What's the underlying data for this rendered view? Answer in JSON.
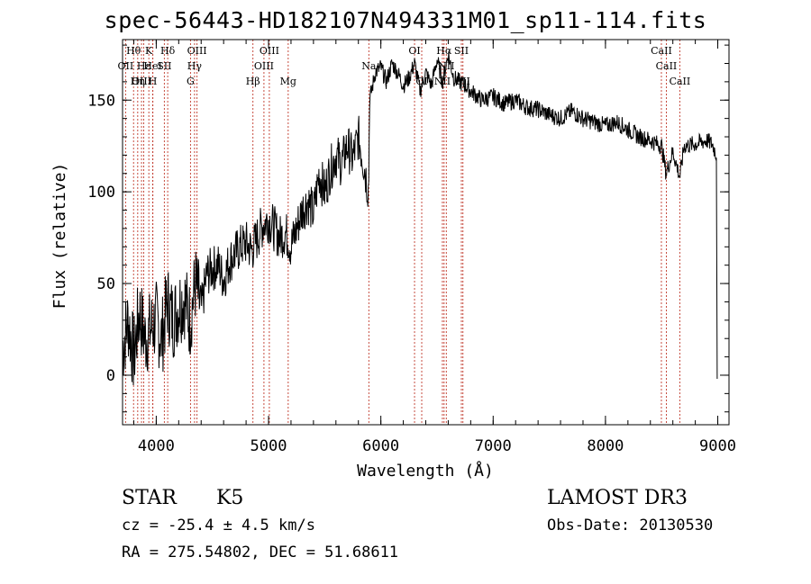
{
  "title": "spec-56443-HD182107N494331M01_sp11-114.fits",
  "info": {
    "class": "STAR",
    "subclass": "K5",
    "survey": "LAMOST DR3",
    "cz": "cz = -25.4 ± 4.5 km/s",
    "obs_date": "Obs-Date: 20130530",
    "coords": "RA = 275.54802, DEC =  51.68611"
  },
  "chart_data": {
    "type": "line",
    "title": "spec-56443-HD182107N494331M01_sp11-114.fits",
    "xlabel": "Wavelength (Å)",
    "ylabel": "Flux (relative)",
    "xlim": [
      3700,
      9100
    ],
    "ylim": [
      -27,
      183
    ],
    "xticks": [
      4000,
      5000,
      6000,
      7000,
      8000,
      9000
    ],
    "yticks": [
      0,
      50,
      100,
      150
    ],
    "series": [
      {
        "name": "flux",
        "x": [
          3700,
          3750,
          3800,
          3850,
          3900,
          3950,
          4000,
          4050,
          4100,
          4150,
          4200,
          4250,
          4300,
          4350,
          4400,
          4450,
          4500,
          4550,
          4600,
          4650,
          4700,
          4750,
          4800,
          4850,
          4900,
          4950,
          5000,
          5050,
          5100,
          5150,
          5200,
          5250,
          5300,
          5350,
          5400,
          5450,
          5500,
          5550,
          5600,
          5650,
          5700,
          5750,
          5800,
          5850,
          5890,
          5900,
          5950,
          6000,
          6050,
          6100,
          6150,
          6200,
          6250,
          6300,
          6350,
          6400,
          6450,
          6500,
          6550,
          6600,
          6650,
          6700,
          6750,
          6800,
          6900,
          7000,
          7100,
          7200,
          7300,
          7400,
          7500,
          7600,
          7700,
          7800,
          7900,
          8000,
          8100,
          8200,
          8300,
          8400,
          8500,
          8540,
          8600,
          8662,
          8700,
          8800,
          8900,
          8950,
          8990
        ],
        "y": [
          15,
          30,
          10,
          35,
          20,
          25,
          30,
          20,
          40,
          30,
          38,
          42,
          30,
          50,
          35,
          55,
          58,
          60,
          52,
          62,
          66,
          70,
          72,
          68,
          75,
          82,
          85,
          80,
          75,
          78,
          70,
          80,
          90,
          95,
          88,
          110,
          100,
          112,
          120,
          115,
          125,
          118,
          130,
          115,
          100,
          150,
          165,
          168,
          160,
          170,
          165,
          158,
          162,
          170,
          155,
          165,
          158,
          172,
          160,
          175,
          162,
          160,
          158,
          155,
          150,
          152,
          148,
          150,
          146,
          145,
          142,
          140,
          144,
          140,
          138,
          136,
          138,
          134,
          130,
          128,
          125,
          110,
          122,
          108,
          125,
          126,
          128,
          126,
          120
        ]
      }
    ],
    "lines": [
      {
        "label": "Hθ",
        "x": 3798,
        "row": 0
      },
      {
        "label": "OII",
        "x": 3727,
        "row": 1
      },
      {
        "label": "OIII",
        "x": 3869,
        "row": 2
      },
      {
        "label": "Hη",
        "x": 3835,
        "row": 2
      },
      {
        "label": "Hε",
        "x": 3889,
        "row": 1
      },
      {
        "label": "K",
        "x": 3934,
        "row": 0
      },
      {
        "label": "H",
        "x": 3969,
        "row": 2
      },
      {
        "label": "HeI",
        "x": 3970,
        "row": 1
      },
      {
        "label": "SII",
        "x": 4072,
        "row": 1
      },
      {
        "label": "Hδ",
        "x": 4102,
        "row": 0
      },
      {
        "label": "G",
        "x": 4305,
        "row": 2
      },
      {
        "label": "Hγ",
        "x": 4341,
        "row": 1
      },
      {
        "label": "OIII",
        "x": 4363,
        "row": 0
      },
      {
        "label": "Hβ",
        "x": 4861,
        "row": 2
      },
      {
        "label": "OIII",
        "x": 4959,
        "row": 1
      },
      {
        "label": "OIII",
        "x": 5007,
        "row": 0
      },
      {
        "label": "Mg",
        "x": 5175,
        "row": 2
      },
      {
        "label": "Na",
        "x": 5893,
        "row": 1
      },
      {
        "label": "OI",
        "x": 6300,
        "row": 0
      },
      {
        "label": "OI",
        "x": 6364,
        "row": 2
      },
      {
        "label": "NII",
        "x": 6548,
        "row": 2
      },
      {
        "label": "Hα",
        "x": 6563,
        "row": 0
      },
      {
        "label": "NII",
        "x": 6583,
        "row": 1
      },
      {
        "label": "SII",
        "x": 6717,
        "row": 0
      },
      {
        "label": "SII",
        "x": 6731,
        "row": 2
      },
      {
        "label": "CaII",
        "x": 8498,
        "row": 0
      },
      {
        "label": "CaII",
        "x": 8542,
        "row": 1
      },
      {
        "label": "CaII",
        "x": 8662,
        "row": 2
      }
    ]
  }
}
